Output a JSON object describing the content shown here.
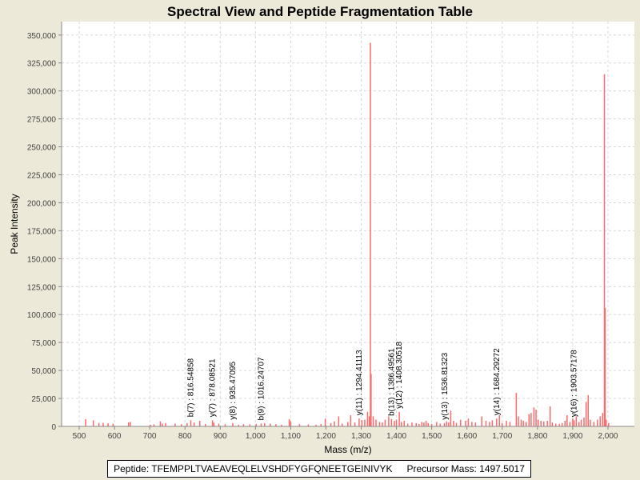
{
  "chart_data": {
    "type": "bar",
    "title": "Spectral View and Peptide Fragmentation Table",
    "xlabel": "Mass (m/z)",
    "ylabel": "Peak Intensity",
    "xlim": [
      450,
      2075
    ],
    "ylim": [
      0,
      362000
    ],
    "xticks": [
      500,
      600,
      700,
      800,
      900,
      1000,
      1100,
      1200,
      1300,
      1400,
      1500,
      1600,
      1700,
      1800,
      1900,
      2000
    ],
    "xtick_labels": [
      "500",
      "600",
      "700",
      "800",
      "900",
      "1,000",
      "1,100",
      "1,200",
      "1,300",
      "1,400",
      "1,500",
      "1,600",
      "1,700",
      "1,800",
      "1,900",
      "2,000"
    ],
    "yticks": [
      0,
      25000,
      50000,
      75000,
      100000,
      125000,
      150000,
      175000,
      200000,
      225000,
      250000,
      275000,
      300000,
      325000,
      350000
    ],
    "ytick_labels": [
      "0",
      "25,000",
      "50,000",
      "75,000",
      "100,000",
      "125,000",
      "150,000",
      "175,000",
      "200,000",
      "225,000",
      "250,000",
      "275,000",
      "300,000",
      "325,000",
      "350,000"
    ],
    "grid": true,
    "bar_color": "#ff6a6a",
    "peaks": [
      [
        518,
        6500
      ],
      [
        540,
        5500
      ],
      [
        556,
        3000
      ],
      [
        568,
        3200
      ],
      [
        582,
        2800
      ],
      [
        596,
        2400
      ],
      [
        640,
        3500
      ],
      [
        645,
        4000
      ],
      [
        702,
        1500
      ],
      [
        712,
        1800
      ],
      [
        730,
        4500
      ],
      [
        736,
        2500
      ],
      [
        745,
        3000
      ],
      [
        772,
        2500
      ],
      [
        790,
        2000
      ],
      [
        806,
        3000
      ],
      [
        816.5,
        5500
      ],
      [
        826,
        3500
      ],
      [
        842,
        5000
      ],
      [
        858,
        2200
      ],
      [
        878,
        5500
      ],
      [
        882,
        3500
      ],
      [
        896,
        2500
      ],
      [
        914,
        2000
      ],
      [
        935.5,
        3000
      ],
      [
        952,
        1500
      ],
      [
        966,
        2000
      ],
      [
        984,
        1800
      ],
      [
        1002,
        2200
      ],
      [
        1016,
        2600
      ],
      [
        1026,
        3000
      ],
      [
        1042,
        2400
      ],
      [
        1058,
        2000
      ],
      [
        1074,
        1500
      ],
      [
        1096,
        6500
      ],
      [
        1100,
        4500
      ],
      [
        1125,
        2000
      ],
      [
        1150,
        1800
      ],
      [
        1172,
        1500
      ],
      [
        1186,
        2200
      ],
      [
        1198,
        7000
      ],
      [
        1214,
        3000
      ],
      [
        1224,
        4500
      ],
      [
        1236,
        9000
      ],
      [
        1246,
        2500
      ],
      [
        1262,
        4000
      ],
      [
        1270,
        10000
      ],
      [
        1282,
        3500
      ],
      [
        1294,
        7000
      ],
      [
        1302,
        5500
      ],
      [
        1310,
        6000
      ],
      [
        1318,
        13000
      ],
      [
        1323,
        9000
      ],
      [
        1326,
        343000
      ],
      [
        1328,
        47000
      ],
      [
        1334,
        9000
      ],
      [
        1342,
        6000
      ],
      [
        1352,
        4000
      ],
      [
        1360,
        3500
      ],
      [
        1368,
        6000
      ],
      [
        1378,
        9000
      ],
      [
        1386,
        6500
      ],
      [
        1394,
        5000
      ],
      [
        1400,
        6000
      ],
      [
        1408,
        13000
      ],
      [
        1414,
        4000
      ],
      [
        1422,
        5000
      ],
      [
        1432,
        2500
      ],
      [
        1444,
        3500
      ],
      [
        1456,
        3000
      ],
      [
        1464,
        2200
      ],
      [
        1472,
        4000
      ],
      [
        1478,
        3500
      ],
      [
        1484,
        5000
      ],
      [
        1490,
        3000
      ],
      [
        1500,
        2200
      ],
      [
        1514,
        4000
      ],
      [
        1524,
        2500
      ],
      [
        1536,
        3000
      ],
      [
        1542,
        4500
      ],
      [
        1548,
        3500
      ],
      [
        1554,
        14000
      ],
      [
        1562,
        5000
      ],
      [
        1570,
        3200
      ],
      [
        1582,
        6000
      ],
      [
        1596,
        5000
      ],
      [
        1604,
        7000
      ],
      [
        1614,
        4000
      ],
      [
        1624,
        3500
      ],
      [
        1642,
        9000
      ],
      [
        1654,
        5000
      ],
      [
        1664,
        4000
      ],
      [
        1672,
        5500
      ],
      [
        1684,
        7000
      ],
      [
        1692,
        10000
      ],
      [
        1700,
        3000
      ],
      [
        1712,
        5000
      ],
      [
        1722,
        4000
      ],
      [
        1740,
        30000
      ],
      [
        1746,
        9000
      ],
      [
        1754,
        6000
      ],
      [
        1760,
        5000
      ],
      [
        1768,
        4000
      ],
      [
        1776,
        11000
      ],
      [
        1782,
        12000
      ],
      [
        1790,
        17000
      ],
      [
        1796,
        15000
      ],
      [
        1802,
        6000
      ],
      [
        1810,
        5000
      ],
      [
        1818,
        4500
      ],
      [
        1828,
        5000
      ],
      [
        1836,
        18000
      ],
      [
        1842,
        3500
      ],
      [
        1852,
        2500
      ],
      [
        1862,
        2200
      ],
      [
        1870,
        3000
      ],
      [
        1878,
        5000
      ],
      [
        1884,
        10000
      ],
      [
        1892,
        4000
      ],
      [
        1900,
        7000
      ],
      [
        1904,
        5500
      ],
      [
        1910,
        9000
      ],
      [
        1918,
        4000
      ],
      [
        1924,
        6000
      ],
      [
        1932,
        8000
      ],
      [
        1938,
        22000
      ],
      [
        1944,
        28000
      ],
      [
        1950,
        6000
      ],
      [
        1960,
        4000
      ],
      [
        1970,
        6000
      ],
      [
        1978,
        9000
      ],
      [
        1985,
        12000
      ],
      [
        1990,
        315000
      ],
      [
        1992,
        106000
      ],
      [
        1995,
        6000
      ],
      [
        2002,
        3000
      ]
    ],
    "annotations": [
      {
        "x": 816.54858,
        "label": "b(7) : 816.54858",
        "base_y": 5500
      },
      {
        "x": 878.08521,
        "label": "y(7) : 878.08521",
        "base_y": 5500
      },
      {
        "x": 935.47095,
        "label": "y(8) : 935.47095",
        "base_y": 3000
      },
      {
        "x": 1016.24707,
        "label": "b(9) : 1016.24707",
        "base_y": 2600
      },
      {
        "x": 1294.41113,
        "label": "y(11) : 1294.41113",
        "base_y": 7000
      },
      {
        "x": 1386.49561,
        "label": "b(13) : 1386.49561",
        "base_y": 6500
      },
      {
        "x": 1408.30518,
        "label": "y(12) : 1408.30518",
        "base_y": 13000
      },
      {
        "x": 1536.81323,
        "label": "y(13) : 1536.81323",
        "base_y": 3000
      },
      {
        "x": 1684.29272,
        "label": "y(14) : 1684.29272",
        "base_y": 7000
      },
      {
        "x": 1903.57178,
        "label": "y(16) : 1903.57178",
        "base_y": 5500
      }
    ]
  },
  "footer": {
    "peptide_label": "Peptide: TFEMPPLTVAEAVEQLELVSHDFYGFQNEETGEINIVYK",
    "precursor_label": "Precursor Mass: 1497.5017"
  }
}
